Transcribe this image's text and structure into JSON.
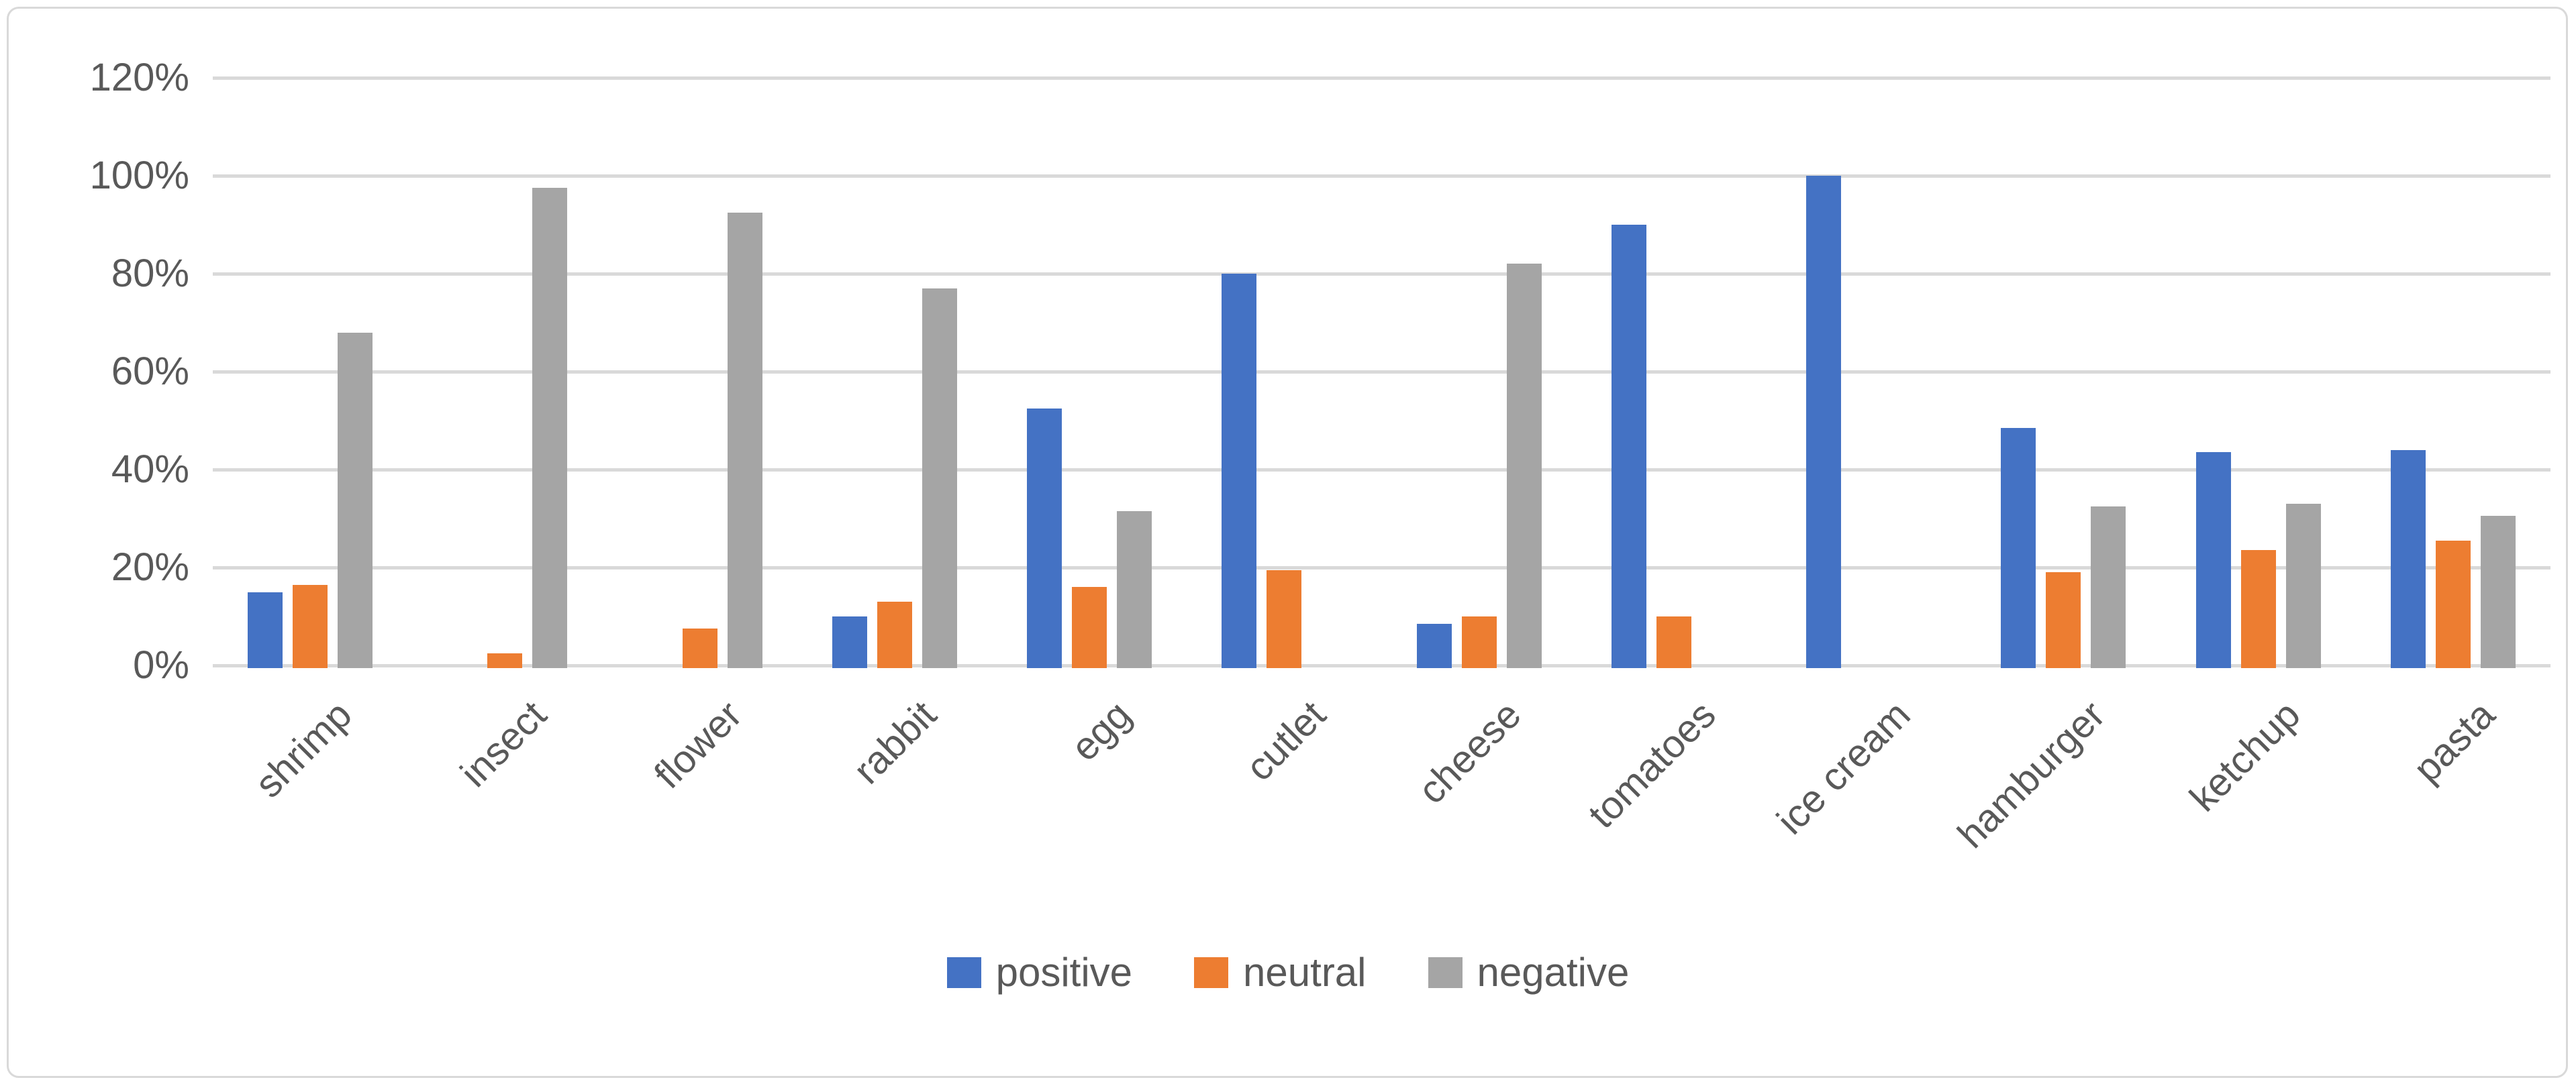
{
  "chart_data": {
    "type": "bar",
    "title": "",
    "xlabel": "",
    "ylabel": "",
    "categories": [
      "shrimp",
      "insect",
      "flower",
      "rabbit",
      "egg",
      "cutlet",
      "cheese",
      "tomatoes",
      "ice cream",
      "hamburger",
      "ketchup",
      "pasta"
    ],
    "series": [
      {
        "name": "positive",
        "color": "#4472C4",
        "values": [
          15,
          0,
          0,
          10,
          52.5,
          80,
          8.5,
          90,
          100,
          48.5,
          43.5,
          44
        ]
      },
      {
        "name": "neutral",
        "color": "#ED7D31",
        "values": [
          16.5,
          2.5,
          7.5,
          13,
          16,
          19.5,
          10,
          10,
          0,
          19,
          23.5,
          25.5
        ]
      },
      {
        "name": "negative",
        "color": "#A5A5A5",
        "values": [
          68,
          97.5,
          92.5,
          77,
          31.5,
          0,
          82,
          0,
          0,
          32.5,
          33,
          30.5
        ]
      }
    ],
    "ylim": [
      0,
      120
    ],
    "ytick_step": 20,
    "ytick_labels": [
      "0%",
      "20%",
      "40%",
      "60%",
      "80%",
      "100%",
      "120%"
    ],
    "grid": true,
    "legend_position": "bottom"
  },
  "colors": {
    "background": "#FFFFFF",
    "border": "#D9D9D9",
    "gridline": "#D9D9D9",
    "axis_text": "#595959"
  }
}
